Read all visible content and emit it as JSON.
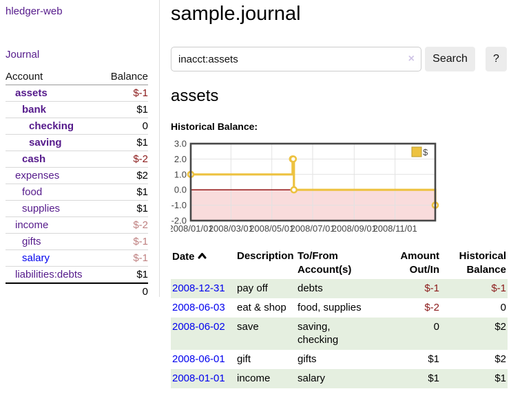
{
  "app": {
    "title": "hledger-web",
    "nav_journal": "Journal"
  },
  "sidebar": {
    "headers": {
      "account": "Account",
      "balance": "Balance"
    },
    "accounts": [
      {
        "name": "assets",
        "balance": "$-1"
      },
      {
        "name": "bank",
        "balance": "$1"
      },
      {
        "name": "checking",
        "balance": "0"
      },
      {
        "name": "saving",
        "balance": "$1"
      },
      {
        "name": "cash",
        "balance": "$-2"
      },
      {
        "name": "expenses",
        "balance": "$2"
      },
      {
        "name": "food",
        "balance": "$1"
      },
      {
        "name": "supplies",
        "balance": "$1"
      },
      {
        "name": "income",
        "balance": "$-2"
      },
      {
        "name": "gifts",
        "balance": "$-1"
      },
      {
        "name": "salary",
        "balance": "$-1"
      },
      {
        "name": "liabilities:debts",
        "balance": "$1"
      }
    ],
    "total": "0"
  },
  "header": {
    "title": "sample.journal"
  },
  "search": {
    "value": "inacct:assets",
    "clear_icon": "×",
    "button_label": "Search",
    "help_label": "?"
  },
  "account_page": {
    "title": "assets",
    "chart_label": "Historical Balance:"
  },
  "chart_data": {
    "type": "line",
    "title": "Historical Balance",
    "series": [
      {
        "name": "$",
        "color": "#EDC240",
        "steps": true,
        "points": [
          [
            "2008-01-01",
            1
          ],
          [
            "2008-06-01",
            2
          ],
          [
            "2008-06-02",
            2
          ],
          [
            "2008-06-03",
            0
          ],
          [
            "2008-12-31",
            -1
          ]
        ]
      }
    ],
    "x_range": [
      "2008-01-01",
      "2008-12-31"
    ],
    "x_ticks": [
      "2008/01/01",
      "2008/03/01",
      "2008/05/01",
      "2008/07/01",
      "2008/09/01",
      "2008/11/01"
    ],
    "y_ticks": [
      3,
      2,
      1,
      0,
      -1,
      -2
    ],
    "ylim": [
      -2,
      3
    ],
    "grid": true,
    "legend_position": "top-right",
    "negative_region_fill": "#f9dcdc",
    "zero_line_color": "#8b0000"
  },
  "register": {
    "headers": {
      "date": "Date",
      "description": "Description",
      "tofrom_line1": "To/From",
      "tofrom_line2": "Account(s)",
      "amount_line1": "Amount",
      "amount_line2": "Out/In",
      "balance_line1": "Historical",
      "balance_line2": "Balance"
    },
    "rows": [
      {
        "date": "2008-12-31",
        "description": "pay off",
        "accounts": "debts",
        "amount": "$-1",
        "balance": "$-1"
      },
      {
        "date": "2008-06-03",
        "description": "eat & shop",
        "accounts": "food, supplies",
        "amount": "$-2",
        "balance": "0"
      },
      {
        "date": "2008-06-02",
        "description": "save",
        "accounts": "saving, checking",
        "amount": "0",
        "balance": "$2"
      },
      {
        "date": "2008-06-01",
        "description": "gift",
        "accounts": "gifts",
        "amount": "$1",
        "balance": "$2"
      },
      {
        "date": "2008-01-01",
        "description": "income",
        "accounts": "salary",
        "amount": "$1",
        "balance": "$1"
      }
    ]
  },
  "colors": {
    "link_purple": "#551A8B",
    "link_blue": "#0000EE",
    "negative_strong": "#8b1a1a",
    "negative_faded": "#bf8080",
    "row_stripe_green": "#e5efe0",
    "button_bg": "#ececec",
    "chart_line_gold": "#EDC240",
    "chart_negative_fill": "#f9dcdc",
    "chart_zero_line": "#8b0000"
  }
}
